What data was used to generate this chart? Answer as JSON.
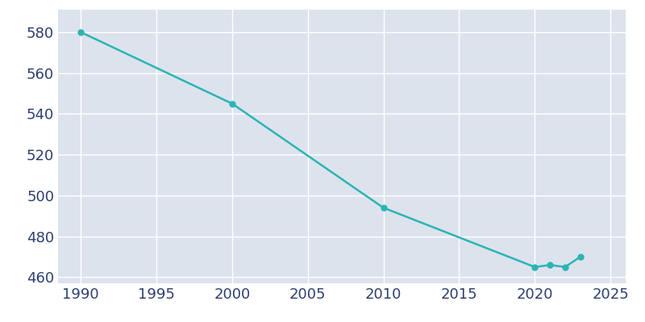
{
  "years": [
    1990,
    2000,
    2010,
    2020,
    2021,
    2022,
    2023
  ],
  "population": [
    580,
    545,
    494,
    465,
    466,
    465,
    470
  ],
  "line_color": "#2ab5b5",
  "marker_color": "#2ab5b5",
  "background_color": "#dde3ed",
  "figure_background": "#ffffff",
  "xlim": [
    1988.5,
    2026
  ],
  "ylim": [
    457,
    591
  ],
  "xticks": [
    1990,
    1995,
    2000,
    2005,
    2010,
    2015,
    2020,
    2025
  ],
  "yticks": [
    460,
    480,
    500,
    520,
    540,
    560,
    580
  ],
  "grid_color": "#ffffff",
  "tick_color": "#2d3f6e",
  "tick_fontsize": 13
}
